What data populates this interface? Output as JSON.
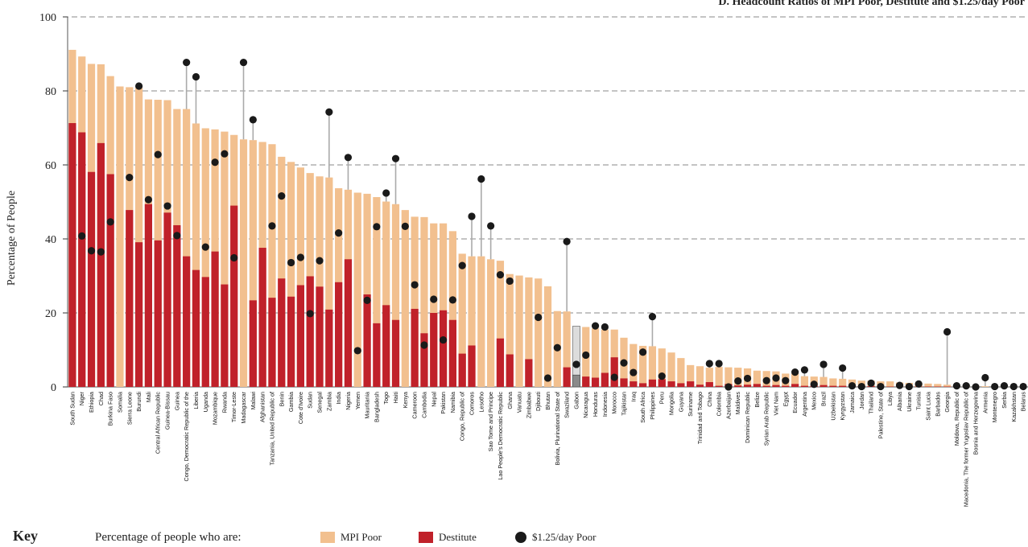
{
  "chart_data": {
    "type": "bar",
    "title": "D. Headcount Ratios of MPI Poor, Destitute and $1.25/day Poor",
    "ylabel": "Percentage of People",
    "xlabel": "",
    "ylim": [
      0,
      100
    ],
    "yticks": [
      "0",
      "20",
      "40",
      "60",
      "80",
      "100"
    ],
    "grid": true,
    "categories": [
      "South Sudan",
      "Niger",
      "Ethiopia",
      "Chad",
      "Burkina Faso",
      "Somalia",
      "Sierra Leone",
      "Burundi",
      "Mali",
      "Central African Republic",
      "Guinea-Bissau",
      "Guinea",
      "Congo, Democratic Republic of the",
      "Liberia",
      "Uganda",
      "Mozambique",
      "Rwanda",
      "Timor-Leste",
      "Madagascar",
      "Malawi",
      "Afghanistan",
      "Tanzania, United Republic of",
      "Benin",
      "Gambia",
      "Cote d'Ivoire",
      "Sudan",
      "Senegal",
      "Zambia",
      "India",
      "Nigeria",
      "Yemen",
      "Mauritania",
      "Bangladesh",
      "Togo",
      "Haiti",
      "Kenya",
      "Cameroon",
      "Cambodia",
      "Nepal",
      "Pakistan",
      "Namibia",
      "Congo, Republic of",
      "Comoros",
      "Lesotho",
      "Sao Tome and Principe",
      "Lao People's Democratic Republic",
      "Ghana",
      "Vanuatu",
      "Zimbabwe",
      "Djibouti",
      "Bhutan",
      "Bolivia, Plurinational State of",
      "Swaziland",
      "Gabon",
      "Nicaragua",
      "Honduras",
      "Indonesia",
      "Morocco",
      "Tajikistan",
      "Iraq",
      "South Africa",
      "Philippines",
      "Peru",
      "Mongolia",
      "Guyana",
      "Suriname",
      "Trinidad and Tobago",
      "China",
      "Colombia",
      "Azerbaijan",
      "Maldives",
      "Dominican Republic",
      "Belize",
      "Syrian Arab Republic",
      "Viet Nam",
      "Egypt",
      "Ecuador",
      "Argentina",
      "Mexico",
      "Brazil",
      "Uzbekistan",
      "Kyrgyzstan",
      "Jamaica",
      "Jordan",
      "Thailand",
      "Palestine, State of",
      "Libya",
      "Albania",
      "Ukraine",
      "Tunisia",
      "Saint Lucia",
      "Barbados",
      "Georgia",
      "Moldova, Republic of",
      "Macedonia, The former Yugoslav Republic of",
      "Bosnia and Herzegovina",
      "Armenia",
      "Montenegro",
      "Serbia",
      "Kazakhstan",
      "Belarus"
    ],
    "series": [
      {
        "name": "MPI Poor",
        "color": "#f2c08f",
        "values": [
          91.1,
          89.3,
          87.3,
          87.2,
          84.0,
          81.2,
          81.0,
          80.8,
          77.7,
          77.6,
          77.5,
          75.1,
          75.1,
          71.2,
          69.9,
          69.6,
          69.0,
          68.1,
          66.9,
          66.7,
          66.2,
          65.6,
          62.2,
          60.8,
          59.3,
          57.8,
          56.9,
          56.6,
          53.7,
          53.3,
          52.5,
          52.2,
          51.3,
          50.1,
          49.4,
          47.8,
          46.0,
          45.9,
          44.2,
          44.2,
          42.1,
          36.0,
          35.3,
          35.3,
          34.5,
          34.1,
          30.5,
          30.1,
          29.6,
          29.3,
          27.2,
          20.5,
          20.4,
          16.4,
          16.2,
          15.8,
          15.5,
          15.5,
          13.3,
          11.6,
          11.1,
          11.0,
          10.4,
          9.3,
          7.8,
          5.9,
          5.6,
          5.2,
          5.4,
          5.3,
          5.2,
          5.0,
          4.4,
          4.3,
          4.2,
          3.6,
          3.6,
          2.9,
          2.8,
          2.7,
          2.3,
          2.2,
          2.0,
          1.7,
          1.7,
          1.5,
          1.5,
          1.2,
          1.1,
          1.1,
          0.9,
          0.8,
          0.6,
          0.5,
          0.4,
          0.3,
          0.2,
          0.1,
          0.1,
          0.1,
          0.1
        ]
      },
      {
        "name": "Destitute",
        "color": "#c0212a",
        "values": [
          71.3,
          68.8,
          58.1,
          65.9,
          57.5,
          0,
          47.8,
          39.1,
          49.4,
          39.6,
          47.1,
          43.7,
          35.3,
          31.6,
          29.7,
          36.6,
          27.7,
          49.0,
          0,
          23.4,
          37.6,
          24.1,
          29.3,
          24.4,
          27.5,
          29.9,
          27.1,
          20.9,
          28.3,
          34.5,
          0,
          25.0,
          17.2,
          22.1,
          18.1,
          0,
          21.1,
          14.5,
          20.0,
          20.7,
          18.1,
          9.0,
          11.2,
          0,
          0,
          13.1,
          8.8,
          0,
          7.5,
          0,
          0,
          0,
          5.3,
          3.2,
          2.8,
          2.5,
          3.8,
          8.0,
          2.3,
          1.5,
          1.0,
          2.0,
          2.1,
          1.5,
          1.0,
          1.5,
          0.6,
          1.3,
          0.3,
          0.8,
          0.4,
          0.6,
          0.8,
          0.3,
          0.5,
          0.3,
          0.8,
          0.3,
          0.3,
          0.5,
          0.3,
          0.3,
          0.2,
          0.2,
          0.2,
          0.1,
          0.1,
          0.1,
          0.1,
          0.1,
          0.1,
          0.1,
          0.1,
          0.1,
          0,
          0,
          0,
          0,
          0,
          0,
          0
        ]
      },
      {
        "name": "$1.25/day Poor",
        "color": "#1a1a1a",
        "values": [
          null,
          40.8,
          36.8,
          36.5,
          44.6,
          null,
          56.6,
          81.3,
          50.6,
          62.8,
          48.9,
          40.9,
          87.7,
          83.8,
          37.8,
          60.7,
          63.0,
          34.9,
          87.7,
          72.2,
          null,
          43.5,
          51.6,
          33.6,
          35.0,
          19.8,
          34.1,
          74.3,
          41.6,
          62.0,
          9.8,
          23.4,
          43.3,
          52.4,
          61.7,
          43.4,
          27.6,
          11.3,
          23.7,
          12.7,
          23.5,
          32.8,
          46.1,
          56.2,
          43.5,
          30.3,
          28.6,
          null,
          null,
          18.8,
          2.4,
          10.6,
          39.3,
          6.1,
          8.6,
          16.5,
          16.2,
          2.6,
          6.5,
          3.9,
          9.4,
          19.0,
          2.9,
          null,
          null,
          null,
          null,
          6.3,
          6.3,
          0.0,
          1.6,
          2.3,
          null,
          1.7,
          2.4,
          1.7,
          4.0,
          4.6,
          0.7,
          6.1,
          null,
          5.1,
          0.3,
          0.1,
          1.0,
          0.1,
          null,
          0.4,
          0.1,
          0.8,
          null,
          null,
          14.9,
          0.3,
          0.3,
          0.0,
          2.5,
          0.1,
          0.3,
          0.1,
          0.1
        ]
      }
    ],
    "annotations": [
      "Gabon"
    ],
    "legend": {
      "position": "bottom",
      "title": "Key",
      "description": "Percentage of people who are:"
    }
  }
}
